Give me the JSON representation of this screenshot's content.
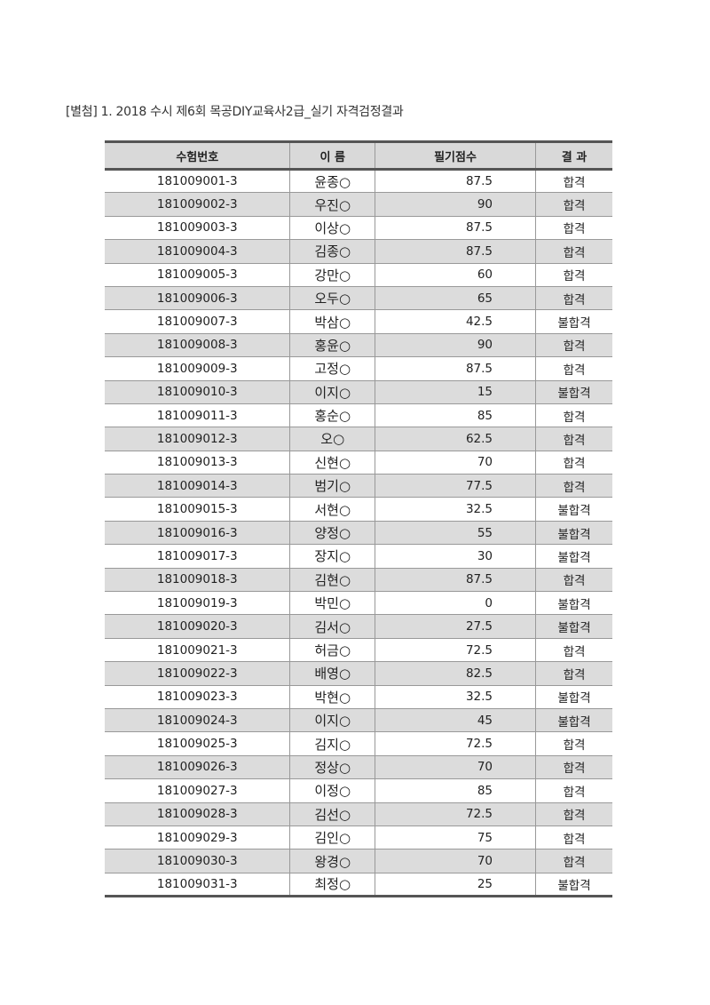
{
  "title": "[별첨] 1. 2018 수시 제6회 목공DIY교육사2급_실기 자격검정결과",
  "table": {
    "headers": [
      "수험번호",
      "이 름",
      "필기점수",
      "결 과"
    ],
    "rows": [
      [
        "181009001-3",
        "윤종○",
        "87.5",
        "합격"
      ],
      [
        "181009002-3",
        "우진○",
        "90",
        "합격"
      ],
      [
        "181009003-3",
        "이상○",
        "87.5",
        "합격"
      ],
      [
        "181009004-3",
        "김종○",
        "87.5",
        "합격"
      ],
      [
        "181009005-3",
        "강만○",
        "60",
        "합격"
      ],
      [
        "181009006-3",
        "오두○",
        "65",
        "합격"
      ],
      [
        "181009007-3",
        "박삼○",
        "42.5",
        "불합격"
      ],
      [
        "181009008-3",
        "홍윤○",
        "90",
        "합격"
      ],
      [
        "181009009-3",
        "고정○",
        "87.5",
        "합격"
      ],
      [
        "181009010-3",
        "이지○",
        "15",
        "불합격"
      ],
      [
        "181009011-3",
        "홍순○",
        "85",
        "합격"
      ],
      [
        "181009012-3",
        "오○",
        "62.5",
        "합격"
      ],
      [
        "181009013-3",
        "신현○",
        "70",
        "합격"
      ],
      [
        "181009014-3",
        "범기○",
        "77.5",
        "합격"
      ],
      [
        "181009015-3",
        "서현○",
        "32.5",
        "불합격"
      ],
      [
        "181009016-3",
        "양정○",
        "55",
        "불합격"
      ],
      [
        "181009017-3",
        "장지○",
        "30",
        "불합격"
      ],
      [
        "181009018-3",
        "김현○",
        "87.5",
        "합격"
      ],
      [
        "181009019-3",
        "박민○",
        "0",
        "불합격"
      ],
      [
        "181009020-3",
        "김서○",
        "27.5",
        "불합격"
      ],
      [
        "181009021-3",
        "허금○",
        "72.5",
        "합격"
      ],
      [
        "181009022-3",
        "배영○",
        "82.5",
        "합격"
      ],
      [
        "181009023-3",
        "박현○",
        "32.5",
        "불합격"
      ],
      [
        "181009024-3",
        "이지○",
        "45",
        "불합격"
      ],
      [
        "181009025-3",
        "김지○",
        "72.5",
        "합격"
      ],
      [
        "181009026-3",
        "정상○",
        "70",
        "합격"
      ],
      [
        "181009027-3",
        "이정○",
        "85",
        "합격"
      ],
      [
        "181009028-3",
        "김선○",
        "72.5",
        "합격"
      ],
      [
        "181009029-3",
        "김인○",
        "75",
        "합격"
      ],
      [
        "181009030-3",
        "왕경○",
        "70",
        "합격"
      ],
      [
        "181009031-3",
        "최정○",
        "25",
        "불합격"
      ]
    ]
  }
}
